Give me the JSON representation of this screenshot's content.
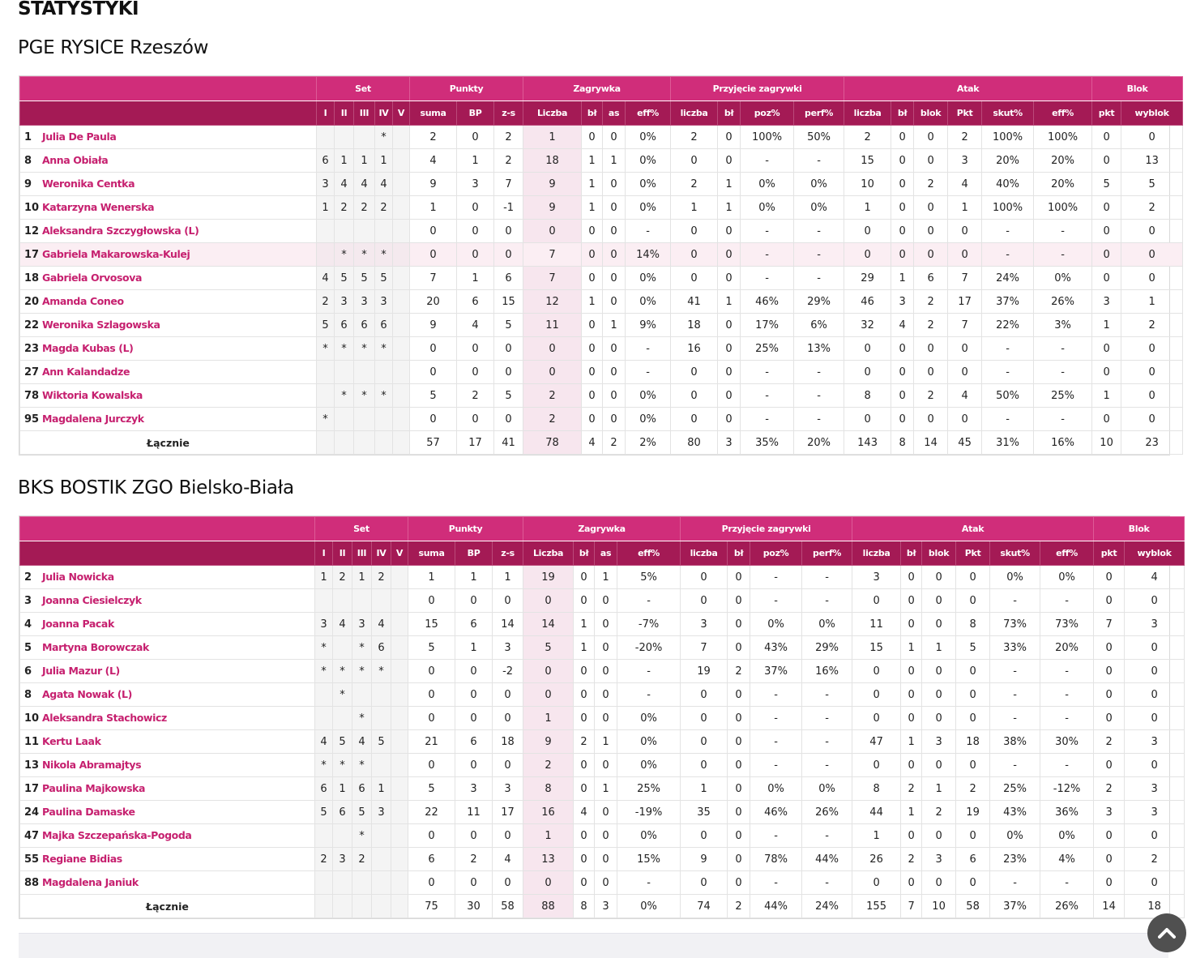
{
  "page_title": "STATYSTYKI",
  "headers": {
    "groups": [
      "Set",
      "Punkty",
      "Zagrywka",
      "Przyjęcie zagrywki",
      "Atak",
      "Blok"
    ],
    "columns": [
      "I",
      "II",
      "III",
      "IV",
      "V",
      "suma",
      "BP",
      "z-s",
      "Liczba",
      "bł",
      "as",
      "eff%",
      "liczba",
      "bł",
      "poz%",
      "perf%",
      "liczba",
      "bł",
      "blok",
      "Pkt",
      "skut%",
      "eff%",
      "pkt",
      "wyblok"
    ]
  },
  "teams": [
    {
      "name": "PGE RYSICE Rzeszów",
      "players": [
        {
          "num": "1",
          "name": "Julia De Paula",
          "sets": [
            "",
            "",
            "",
            "*",
            ""
          ],
          "stats": [
            "2",
            "0",
            "2",
            "1",
            "0",
            "0",
            "0%",
            "2",
            "0",
            "100%",
            "50%",
            "2",
            "0",
            "0",
            "2",
            "100%",
            "100%",
            "0",
            "0"
          ]
        },
        {
          "num": "8",
          "name": "Anna Obiała",
          "sets": [
            "6",
            "1",
            "1",
            "1",
            ""
          ],
          "stats": [
            "4",
            "1",
            "2",
            "18",
            "1",
            "1",
            "0%",
            "0",
            "0",
            "-",
            "-",
            "15",
            "0",
            "0",
            "3",
            "20%",
            "20%",
            "0",
            "13"
          ]
        },
        {
          "num": "9",
          "name": "Weronika Centka",
          "sets": [
            "3",
            "4",
            "4",
            "4",
            ""
          ],
          "stats": [
            "9",
            "3",
            "7",
            "9",
            "1",
            "0",
            "0%",
            "2",
            "1",
            "0%",
            "0%",
            "10",
            "0",
            "2",
            "4",
            "40%",
            "20%",
            "5",
            "5"
          ]
        },
        {
          "num": "10",
          "name": "Katarzyna Wenerska",
          "sets": [
            "1",
            "2",
            "2",
            "2",
            ""
          ],
          "stats": [
            "1",
            "0",
            "-1",
            "9",
            "1",
            "0",
            "0%",
            "1",
            "1",
            "0%",
            "0%",
            "1",
            "0",
            "0",
            "1",
            "100%",
            "100%",
            "0",
            "2"
          ]
        },
        {
          "num": "12",
          "name": "Aleksandra Szczygłowska (L)",
          "sets": [
            "",
            "",
            "",
            "",
            ""
          ],
          "stats": [
            "0",
            "0",
            "0",
            "0",
            "0",
            "0",
            "-",
            "0",
            "0",
            "-",
            "-",
            "0",
            "0",
            "0",
            "0",
            "-",
            "-",
            "0",
            "0"
          ]
        },
        {
          "num": "17",
          "name": "Gabriela Makarowska-Kulej",
          "sets": [
            "",
            "*",
            "*",
            "*",
            ""
          ],
          "stats": [
            "0",
            "0",
            "0",
            "7",
            "0",
            "0",
            "14%",
            "0",
            "0",
            "-",
            "-",
            "0",
            "0",
            "0",
            "0",
            "-",
            "-",
            "0",
            "0"
          ],
          "highlight": true
        },
        {
          "num": "18",
          "name": "Gabriela Orvosova",
          "sets": [
            "4",
            "5",
            "5",
            "5",
            ""
          ],
          "stats": [
            "7",
            "1",
            "6",
            "7",
            "0",
            "0",
            "0%",
            "0",
            "0",
            "-",
            "-",
            "29",
            "1",
            "6",
            "7",
            "24%",
            "0%",
            "0",
            "0"
          ]
        },
        {
          "num": "20",
          "name": "Amanda Coneo",
          "sets": [
            "2",
            "3",
            "3",
            "3",
            ""
          ],
          "stats": [
            "20",
            "6",
            "15",
            "12",
            "1",
            "0",
            "0%",
            "41",
            "1",
            "46%",
            "29%",
            "46",
            "3",
            "2",
            "17",
            "37%",
            "26%",
            "3",
            "1"
          ]
        },
        {
          "num": "22",
          "name": "Weronika Szlagowska",
          "sets": [
            "5",
            "6",
            "6",
            "6",
            ""
          ],
          "stats": [
            "9",
            "4",
            "5",
            "11",
            "0",
            "1",
            "9%",
            "18",
            "0",
            "17%",
            "6%",
            "32",
            "4",
            "2",
            "7",
            "22%",
            "3%",
            "1",
            "2"
          ]
        },
        {
          "num": "23",
          "name": "Magda Kubas (L)",
          "sets": [
            "*",
            "*",
            "*",
            "*",
            ""
          ],
          "stats": [
            "0",
            "0",
            "0",
            "0",
            "0",
            "0",
            "-",
            "16",
            "0",
            "25%",
            "13%",
            "0",
            "0",
            "0",
            "0",
            "-",
            "-",
            "0",
            "0"
          ]
        },
        {
          "num": "27",
          "name": "Ann Kalandadze",
          "sets": [
            "",
            "",
            "",
            "",
            ""
          ],
          "stats": [
            "0",
            "0",
            "0",
            "0",
            "0",
            "0",
            "-",
            "0",
            "0",
            "-",
            "-",
            "0",
            "0",
            "0",
            "0",
            "-",
            "-",
            "0",
            "0"
          ]
        },
        {
          "num": "78",
          "name": "Wiktoria Kowalska",
          "sets": [
            "",
            "*",
            "*",
            "*",
            ""
          ],
          "stats": [
            "5",
            "2",
            "5",
            "2",
            "0",
            "0",
            "0%",
            "0",
            "0",
            "-",
            "-",
            "8",
            "0",
            "2",
            "4",
            "50%",
            "25%",
            "1",
            "0"
          ]
        },
        {
          "num": "95",
          "name": "Magdalena Jurczyk",
          "sets": [
            "*",
            "",
            "",
            "",
            ""
          ],
          "stats": [
            "0",
            "0",
            "0",
            "2",
            "0",
            "0",
            "0%",
            "0",
            "0",
            "-",
            "-",
            "0",
            "0",
            "0",
            "0",
            "-",
            "-",
            "0",
            "0"
          ]
        }
      ],
      "total": {
        "label": "Łącznie",
        "stats": [
          "57",
          "17",
          "41",
          "78",
          "4",
          "2",
          "2%",
          "80",
          "3",
          "35%",
          "20%",
          "143",
          "8",
          "14",
          "45",
          "31%",
          "16%",
          "10",
          "23"
        ]
      }
    },
    {
      "name": "BKS BOSTIK ZGO Bielsko-Biała",
      "players": [
        {
          "num": "2",
          "name": "Julia Nowicka",
          "sets": [
            "1",
            "2",
            "1",
            "2",
            ""
          ],
          "stats": [
            "1",
            "1",
            "1",
            "19",
            "0",
            "1",
            "5%",
            "0",
            "0",
            "-",
            "-",
            "3",
            "0",
            "0",
            "0",
            "0%",
            "0%",
            "0",
            "4"
          ]
        },
        {
          "num": "3",
          "name": "Joanna Ciesielczyk",
          "sets": [
            "",
            "",
            "",
            "",
            ""
          ],
          "stats": [
            "0",
            "0",
            "0",
            "0",
            "0",
            "0",
            "-",
            "0",
            "0",
            "-",
            "-",
            "0",
            "0",
            "0",
            "0",
            "-",
            "-",
            "0",
            "0"
          ]
        },
        {
          "num": "4",
          "name": "Joanna Pacak",
          "sets": [
            "3",
            "4",
            "3",
            "4",
            ""
          ],
          "stats": [
            "15",
            "6",
            "14",
            "14",
            "1",
            "0",
            "-7%",
            "3",
            "0",
            "0%",
            "0%",
            "11",
            "0",
            "0",
            "8",
            "73%",
            "73%",
            "7",
            "3"
          ]
        },
        {
          "num": "5",
          "name": "Martyna Borowczak",
          "sets": [
            "*",
            "",
            "*",
            "6",
            ""
          ],
          "stats": [
            "5",
            "1",
            "3",
            "5",
            "1",
            "0",
            "-20%",
            "7",
            "0",
            "43%",
            "29%",
            "15",
            "1",
            "1",
            "5",
            "33%",
            "20%",
            "0",
            "0"
          ]
        },
        {
          "num": "6",
          "name": "Julia Mazur (L)",
          "sets": [
            "*",
            "*",
            "*",
            "*",
            ""
          ],
          "stats": [
            "0",
            "0",
            "-2",
            "0",
            "0",
            "0",
            "-",
            "19",
            "2",
            "37%",
            "16%",
            "0",
            "0",
            "0",
            "0",
            "-",
            "-",
            "0",
            "0"
          ]
        },
        {
          "num": "8",
          "name": "Agata Nowak (L)",
          "sets": [
            "",
            "*",
            "",
            "",
            ""
          ],
          "stats": [
            "0",
            "0",
            "0",
            "0",
            "0",
            "0",
            "-",
            "0",
            "0",
            "-",
            "-",
            "0",
            "0",
            "0",
            "0",
            "-",
            "-",
            "0",
            "0"
          ]
        },
        {
          "num": "10",
          "name": "Aleksandra Stachowicz",
          "sets": [
            "",
            "",
            "*",
            "",
            ""
          ],
          "stats": [
            "0",
            "0",
            "0",
            "1",
            "0",
            "0",
            "0%",
            "0",
            "0",
            "-",
            "-",
            "0",
            "0",
            "0",
            "0",
            "-",
            "-",
            "0",
            "0"
          ]
        },
        {
          "num": "11",
          "name": "Kertu Laak",
          "sets": [
            "4",
            "5",
            "4",
            "5",
            ""
          ],
          "stats": [
            "21",
            "6",
            "18",
            "9",
            "2",
            "1",
            "0%",
            "0",
            "0",
            "-",
            "-",
            "47",
            "1",
            "3",
            "18",
            "38%",
            "30%",
            "2",
            "3"
          ]
        },
        {
          "num": "13",
          "name": "Nikola Abramajtys",
          "sets": [
            "*",
            "*",
            "*",
            "",
            ""
          ],
          "stats": [
            "0",
            "0",
            "0",
            "2",
            "0",
            "0",
            "0%",
            "0",
            "0",
            "-",
            "-",
            "0",
            "0",
            "0",
            "0",
            "-",
            "-",
            "0",
            "0"
          ]
        },
        {
          "num": "17",
          "name": "Paulina Majkowska",
          "sets": [
            "6",
            "1",
            "6",
            "1",
            ""
          ],
          "stats": [
            "5",
            "3",
            "3",
            "8",
            "0",
            "1",
            "25%",
            "1",
            "0",
            "0%",
            "0%",
            "8",
            "2",
            "1",
            "2",
            "25%",
            "-12%",
            "2",
            "3"
          ]
        },
        {
          "num": "24",
          "name": "Paulina Damaske",
          "sets": [
            "5",
            "6",
            "5",
            "3",
            ""
          ],
          "stats": [
            "22",
            "11",
            "17",
            "16",
            "4",
            "0",
            "-19%",
            "35",
            "0",
            "46%",
            "26%",
            "44",
            "1",
            "2",
            "19",
            "43%",
            "36%",
            "3",
            "3"
          ]
        },
        {
          "num": "47",
          "name": "Majka Szczepańska-Pogoda",
          "sets": [
            "",
            "",
            "*",
            "",
            ""
          ],
          "stats": [
            "0",
            "0",
            "0",
            "1",
            "0",
            "0",
            "0%",
            "0",
            "0",
            "-",
            "-",
            "1",
            "0",
            "0",
            "0",
            "0%",
            "0%",
            "0",
            "0"
          ]
        },
        {
          "num": "55",
          "name": "Regiane Bidias",
          "sets": [
            "2",
            "3",
            "2",
            "",
            ""
          ],
          "stats": [
            "6",
            "2",
            "4",
            "13",
            "0",
            "0",
            "15%",
            "9",
            "0",
            "78%",
            "44%",
            "26",
            "2",
            "3",
            "6",
            "23%",
            "4%",
            "0",
            "2"
          ]
        },
        {
          "num": "88",
          "name": "Magdalena Janiuk",
          "sets": [
            "",
            "",
            "",
            "",
            ""
          ],
          "stats": [
            "0",
            "0",
            "0",
            "0",
            "0",
            "0",
            "-",
            "0",
            "0",
            "-",
            "-",
            "0",
            "0",
            "0",
            "0",
            "-",
            "-",
            "0",
            "0"
          ]
        }
      ],
      "total": {
        "label": "Łącznie",
        "stats": [
          "75",
          "30",
          "58",
          "88",
          "8",
          "3",
          "0%",
          "74",
          "2",
          "44%",
          "24%",
          "155",
          "7",
          "10",
          "58",
          "37%",
          "26%",
          "14",
          "18"
        ]
      }
    }
  ],
  "icons": {
    "scroll_top": "chevron-up-icon"
  },
  "colors": {
    "group_header": "#d02d7a",
    "column_header": "#a41a55",
    "player_link": "#c6206f",
    "highlight_row": "#fbeef3"
  }
}
